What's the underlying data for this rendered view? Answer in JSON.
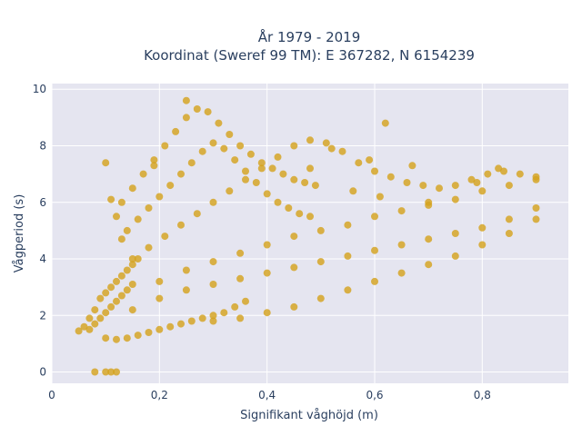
{
  "chart_data": {
    "type": "scatter",
    "title_line1": "År 1979 - 2019",
    "title_line2": "Koordinat (Sweref 99 TM): E 367282, N 6154239",
    "xlabel": "Signifikant våghöjd (m)",
    "ylabel": "Vågperiod (s)",
    "xlim": [
      0,
      0.96
    ],
    "ylim": [
      -0.4,
      10.2
    ],
    "x_ticks": [
      0,
      0.2,
      0.4,
      0.6,
      0.8
    ],
    "x_tick_labels": [
      "0",
      "0,2",
      "0,4",
      "0,6",
      "0,8"
    ],
    "y_ticks": [
      0,
      2,
      4,
      6,
      8,
      10
    ],
    "y_tick_labels": [
      "0",
      "2",
      "4",
      "6",
      "8",
      "10"
    ],
    "grid": true,
    "colors": {
      "marker": "#d4a21f",
      "plot_background": "#e5e5f0",
      "grid": "#ffffff",
      "text": "#2a3f5f"
    },
    "points": [
      [
        0.05,
        1.45
      ],
      [
        0.06,
        1.6
      ],
      [
        0.07,
        1.5
      ],
      [
        0.08,
        1.7
      ],
      [
        0.09,
        1.9
      ],
      [
        0.1,
        2.1
      ],
      [
        0.11,
        2.3
      ],
      [
        0.12,
        2.5
      ],
      [
        0.13,
        2.7
      ],
      [
        0.14,
        2.9
      ],
      [
        0.15,
        3.1
      ],
      [
        0.1,
        1.2
      ],
      [
        0.12,
        1.15
      ],
      [
        0.14,
        1.2
      ],
      [
        0.16,
        1.3
      ],
      [
        0.18,
        1.4
      ],
      [
        0.2,
        1.5
      ],
      [
        0.22,
        1.6
      ],
      [
        0.24,
        1.7
      ],
      [
        0.26,
        1.8
      ],
      [
        0.28,
        1.9
      ],
      [
        0.3,
        2.0
      ],
      [
        0.32,
        2.1
      ],
      [
        0.34,
        2.3
      ],
      [
        0.36,
        2.5
      ],
      [
        0.15,
        2.2
      ],
      [
        0.2,
        2.6
      ],
      [
        0.25,
        2.9
      ],
      [
        0.3,
        3.1
      ],
      [
        0.35,
        3.3
      ],
      [
        0.4,
        3.5
      ],
      [
        0.45,
        3.7
      ],
      [
        0.5,
        3.9
      ],
      [
        0.55,
        4.1
      ],
      [
        0.6,
        4.3
      ],
      [
        0.65,
        4.5
      ],
      [
        0.7,
        4.7
      ],
      [
        0.75,
        4.9
      ],
      [
        0.8,
        5.1
      ],
      [
        0.85,
        5.4
      ],
      [
        0.9,
        5.8
      ],
      [
        0.2,
        3.2
      ],
      [
        0.25,
        3.6
      ],
      [
        0.3,
        3.9
      ],
      [
        0.35,
        4.2
      ],
      [
        0.4,
        4.5
      ],
      [
        0.45,
        4.8
      ],
      [
        0.5,
        5.0
      ],
      [
        0.55,
        5.2
      ],
      [
        0.6,
        5.5
      ],
      [
        0.65,
        5.7
      ],
      [
        0.7,
        5.9
      ],
      [
        0.75,
        6.1
      ],
      [
        0.8,
        6.4
      ],
      [
        0.85,
        6.6
      ],
      [
        0.9,
        6.8
      ],
      [
        0.3,
        1.8
      ],
      [
        0.35,
        1.9
      ],
      [
        0.4,
        2.1
      ],
      [
        0.45,
        2.3
      ],
      [
        0.5,
        2.6
      ],
      [
        0.55,
        2.9
      ],
      [
        0.6,
        3.2
      ],
      [
        0.65,
        3.5
      ],
      [
        0.7,
        3.8
      ],
      [
        0.75,
        4.1
      ],
      [
        0.8,
        4.5
      ],
      [
        0.85,
        4.9
      ],
      [
        0.9,
        5.4
      ],
      [
        0.13,
        6.0
      ],
      [
        0.15,
        6.5
      ],
      [
        0.17,
        7.0
      ],
      [
        0.19,
        7.5
      ],
      [
        0.21,
        8.0
      ],
      [
        0.23,
        8.5
      ],
      [
        0.25,
        9.0
      ],
      [
        0.27,
        9.3
      ],
      [
        0.29,
        9.2
      ],
      [
        0.31,
        8.8
      ],
      [
        0.33,
        8.4
      ],
      [
        0.35,
        8.0
      ],
      [
        0.37,
        7.7
      ],
      [
        0.39,
        7.4
      ],
      [
        0.41,
        7.2
      ],
      [
        0.43,
        7.0
      ],
      [
        0.45,
        6.8
      ],
      [
        0.47,
        6.7
      ],
      [
        0.49,
        6.6
      ],
      [
        0.14,
        5.0
      ],
      [
        0.16,
        5.4
      ],
      [
        0.18,
        5.8
      ],
      [
        0.2,
        6.2
      ],
      [
        0.22,
        6.6
      ],
      [
        0.24,
        7.0
      ],
      [
        0.26,
        7.4
      ],
      [
        0.28,
        7.8
      ],
      [
        0.3,
        8.1
      ],
      [
        0.32,
        7.9
      ],
      [
        0.34,
        7.5
      ],
      [
        0.36,
        7.1
      ],
      [
        0.38,
        6.7
      ],
      [
        0.4,
        6.3
      ],
      [
        0.42,
        6.0
      ],
      [
        0.44,
        5.8
      ],
      [
        0.46,
        5.6
      ],
      [
        0.48,
        5.5
      ],
      [
        0.15,
        4.0
      ],
      [
        0.18,
        4.4
      ],
      [
        0.21,
        4.8
      ],
      [
        0.24,
        5.2
      ],
      [
        0.27,
        5.6
      ],
      [
        0.3,
        6.0
      ],
      [
        0.33,
        6.4
      ],
      [
        0.36,
        6.8
      ],
      [
        0.39,
        7.2
      ],
      [
        0.42,
        7.6
      ],
      [
        0.45,
        8.0
      ],
      [
        0.48,
        8.2
      ],
      [
        0.51,
        8.1
      ],
      [
        0.54,
        7.8
      ],
      [
        0.57,
        7.4
      ],
      [
        0.6,
        7.1
      ],
      [
        0.63,
        6.9
      ],
      [
        0.66,
        6.7
      ],
      [
        0.69,
        6.6
      ],
      [
        0.72,
        6.5
      ],
      [
        0.75,
        6.6
      ],
      [
        0.78,
        6.8
      ],
      [
        0.81,
        7.0
      ],
      [
        0.84,
        7.1
      ],
      [
        0.87,
        7.0
      ],
      [
        0.9,
        6.9
      ],
      [
        0.25,
        9.6
      ],
      [
        0.19,
        7.3
      ],
      [
        0.1,
        7.4
      ],
      [
        0.11,
        6.1
      ],
      [
        0.12,
        5.5
      ],
      [
        0.13,
        4.7
      ],
      [
        0.62,
        8.8
      ],
      [
        0.67,
        7.3
      ],
      [
        0.59,
        7.5
      ],
      [
        0.52,
        7.9
      ],
      [
        0.48,
        7.2
      ],
      [
        0.56,
        6.4
      ],
      [
        0.61,
        6.2
      ],
      [
        0.7,
        6.0
      ],
      [
        0.79,
        6.7
      ],
      [
        0.83,
        7.2
      ],
      [
        0.08,
        0.0
      ],
      [
        0.1,
        0.0
      ],
      [
        0.12,
        0.0
      ],
      [
        0.11,
        0.0
      ],
      [
        0.07,
        1.9
      ],
      [
        0.08,
        2.2
      ],
      [
        0.09,
        2.6
      ],
      [
        0.1,
        2.8
      ],
      [
        0.11,
        3.0
      ],
      [
        0.12,
        3.2
      ],
      [
        0.13,
        3.4
      ],
      [
        0.14,
        3.6
      ],
      [
        0.15,
        3.8
      ],
      [
        0.16,
        4.0
      ]
    ]
  }
}
